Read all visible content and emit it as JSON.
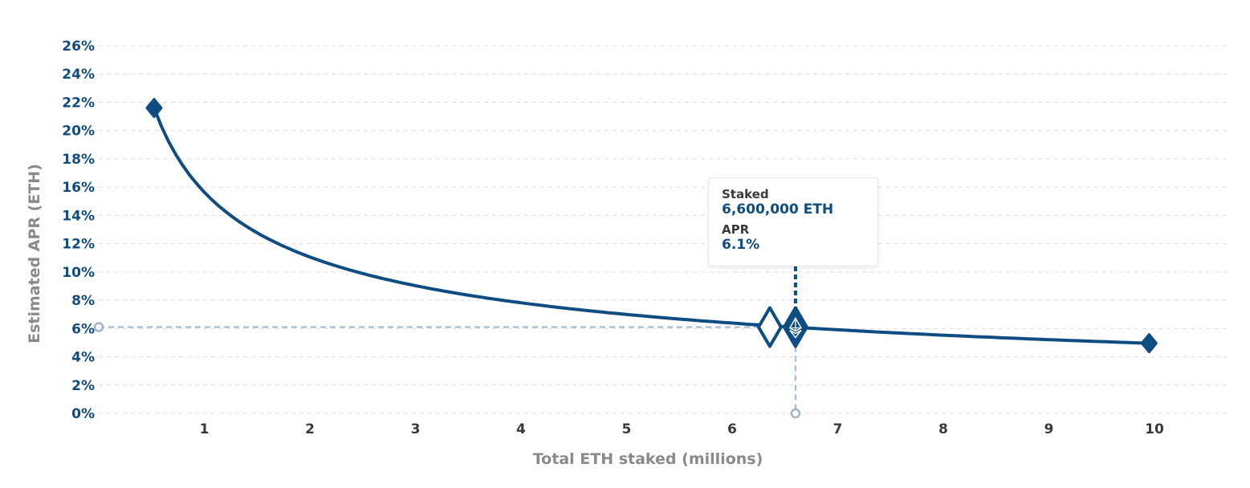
{
  "chart_data": {
    "type": "line",
    "xlabel": "Total ETH staked (millions)",
    "ylabel": "Estimated APR (ETH)",
    "x_ticks": [
      "1",
      "2",
      "3",
      "4",
      "5",
      "6",
      "7",
      "8",
      "9",
      "10"
    ],
    "y_ticks": [
      "0%",
      "2%",
      "4%",
      "6%",
      "8%",
      "10%",
      "12%",
      "14%",
      "16%",
      "18%",
      "20%",
      "22%",
      "24%",
      "26%"
    ],
    "xlim": [
      0,
      10.7
    ],
    "ylim": [
      0,
      26
    ],
    "grid": true,
    "series": [
      {
        "x": [
          0.524288,
          1,
          1.5,
          2,
          3,
          4,
          5,
          6,
          6.6,
          7,
          8,
          9,
          9.95
        ],
        "y": [
          21.6,
          15.64,
          12.77,
          11.06,
          9.03,
          7.82,
          6.99,
          6.38,
          6.09,
          5.91,
          5.53,
          5.21,
          4.96
        ]
      }
    ],
    "markers": {
      "start": {
        "x": 0.524288,
        "y": 21.6
      },
      "end": {
        "x": 9.95,
        "y": 4.96
      }
    },
    "highlight": {
      "x": 6.6,
      "y": 6.1,
      "tooltip": {
        "staked_label": "Staked",
        "staked_value": "6,600,000 ETH",
        "apr_label": "APR",
        "apr_value": "6.1%"
      }
    },
    "colors": {
      "line": "#0f4c81",
      "guide": "#9bb6cf",
      "grid": "#dcdcdc",
      "ytick": "#0f4c81",
      "xtick": "#3a3a3a",
      "axis_title": "#8a8a8a"
    }
  }
}
